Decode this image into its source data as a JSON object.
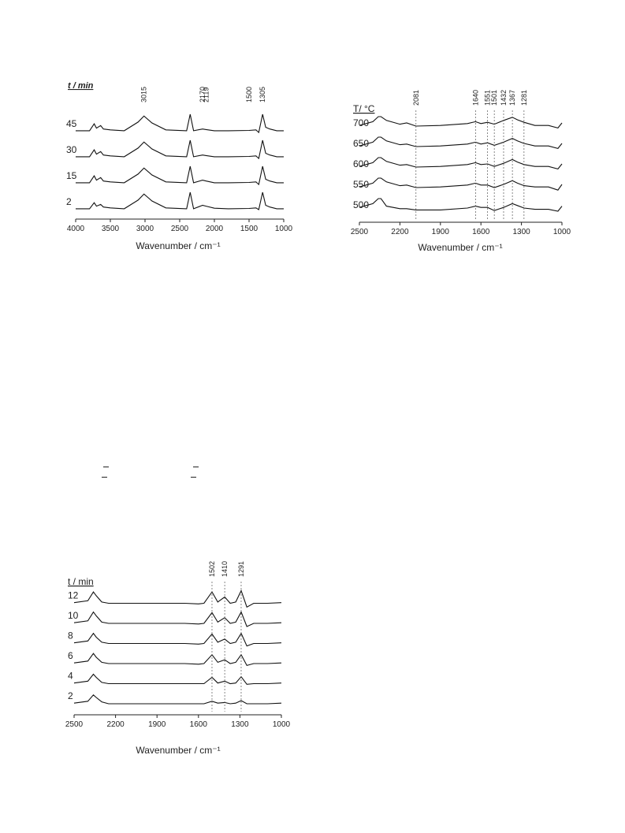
{
  "figures": [
    {
      "id": "top-left",
      "type": "line",
      "xlabel": "Wavenumber / cm⁻¹",
      "xlim": [
        4000,
        1000
      ],
      "xticks": [
        4000,
        3500,
        3000,
        2500,
        2000,
        1500,
        1000
      ],
      "legend_title": "t / min",
      "series_names": [
        "45",
        "30",
        "15",
        "2"
      ],
      "annotations": [
        "3015",
        "2170",
        "2119",
        "1500",
        "1305"
      ],
      "annotation_x": [
        3015,
        2170,
        2119,
        1500,
        1305
      ]
    },
    {
      "id": "top-right",
      "type": "line",
      "xlabel": "Wavenumber / cm⁻¹",
      "xlim": [
        2500,
        1000
      ],
      "xticks": [
        2500,
        2200,
        1900,
        1600,
        1300,
        1000
      ],
      "legend_title": "T/ °C",
      "series_names": [
        "700",
        "650",
        "600",
        "550",
        "500"
      ],
      "annotations": [
        "2081",
        "1640",
        "1551",
        "1501",
        "1432",
        "1367",
        "1281"
      ],
      "annotation_x": [
        2081,
        1640,
        1551,
        1501,
        1432,
        1367,
        1281
      ]
    },
    {
      "id": "bottom-left",
      "type": "line",
      "xlabel": "Wavenumber / cm⁻¹",
      "xlim": [
        2500,
        1000
      ],
      "xticks": [
        2500,
        2200,
        1900,
        1600,
        1300,
        1000
      ],
      "legend_title": "t / min",
      "series_names": [
        "12",
        "10",
        "8",
        "6",
        "4",
        "2"
      ],
      "annotations": [
        "1502",
        "1410",
        "1291"
      ],
      "annotation_x": [
        1502,
        1410,
        1291
      ]
    }
  ],
  "chart_data": [
    {
      "type": "line",
      "xlabel": "Wavenumber / cm⁻¹",
      "xlim": [
        4000,
        1000
      ],
      "ylim": [
        0,
        4
      ],
      "legend_title": "t / min",
      "grid": false,
      "x": [
        4000,
        3800,
        3733,
        3700,
        3640,
        3600,
        3500,
        3300,
        3100,
        3015,
        2900,
        2700,
        2400,
        2349,
        2300,
        2170,
        2119,
        2000,
        1800,
        1500,
        1400,
        1360,
        1305,
        1260,
        1200,
        1100,
        1000
      ],
      "series": [
        {
          "name": "45",
          "values": [
            3.05,
            3.05,
            3.45,
            3.2,
            3.35,
            3.15,
            3.1,
            3.05,
            3.55,
            3.9,
            3.5,
            3.1,
            3.05,
            4.0,
            3.05,
            3.15,
            3.12,
            3.05,
            3.05,
            3.07,
            3.1,
            2.95,
            4.0,
            3.25,
            3.15,
            3.05,
            3.05
          ]
        },
        {
          "name": "30",
          "values": [
            2.05,
            2.05,
            2.45,
            2.2,
            2.35,
            2.15,
            2.1,
            2.05,
            2.55,
            2.9,
            2.5,
            2.1,
            2.05,
            3.0,
            2.05,
            2.15,
            2.12,
            2.05,
            2.05,
            2.07,
            2.1,
            1.95,
            3.0,
            2.25,
            2.15,
            2.05,
            2.05
          ]
        },
        {
          "name": "15",
          "values": [
            1.05,
            1.05,
            1.45,
            1.2,
            1.35,
            1.15,
            1.1,
            1.05,
            1.55,
            1.9,
            1.5,
            1.1,
            1.05,
            2.0,
            1.05,
            1.2,
            1.15,
            1.05,
            1.05,
            1.07,
            1.1,
            0.95,
            2.0,
            1.25,
            1.15,
            1.05,
            1.05
          ]
        },
        {
          "name": "2",
          "values": [
            0.05,
            0.05,
            0.4,
            0.2,
            0.3,
            0.15,
            0.1,
            0.05,
            0.55,
            0.9,
            0.5,
            0.1,
            0.05,
            1.0,
            0.05,
            0.25,
            0.2,
            0.08,
            0.05,
            0.07,
            0.1,
            0.0,
            1.0,
            0.25,
            0.15,
            0.05,
            0.05
          ]
        }
      ]
    },
    {
      "type": "line",
      "xlabel": "Wavenumber / cm⁻¹",
      "xlim": [
        2500,
        1000
      ],
      "ylim": [
        0,
        5
      ],
      "legend_title": "T/ °C",
      "grid": false,
      "x": [
        2500,
        2400,
        2360,
        2340,
        2300,
        2200,
        2150,
        2081,
        1900,
        1700,
        1640,
        1600,
        1551,
        1501,
        1432,
        1367,
        1330,
        1281,
        1200,
        1100,
        1030,
        1000
      ],
      "series": [
        {
          "name": "700",
          "values": [
            4.3,
            4.6,
            5.0,
            5.0,
            4.7,
            4.4,
            4.5,
            4.25,
            4.3,
            4.45,
            4.6,
            4.45,
            4.55,
            4.4,
            4.7,
            4.95,
            4.75,
            4.55,
            4.3,
            4.3,
            4.1,
            4.5
          ]
        },
        {
          "name": "650",
          "values": [
            3.3,
            3.6,
            4.0,
            4.0,
            3.7,
            3.4,
            3.45,
            3.25,
            3.3,
            3.45,
            3.6,
            3.45,
            3.55,
            3.35,
            3.6,
            3.9,
            3.7,
            3.5,
            3.3,
            3.3,
            3.1,
            3.5
          ]
        },
        {
          "name": "600",
          "values": [
            2.3,
            2.6,
            3.0,
            3.0,
            2.7,
            2.4,
            2.45,
            2.25,
            2.3,
            2.45,
            2.6,
            2.45,
            2.5,
            2.3,
            2.55,
            2.85,
            2.65,
            2.45,
            2.3,
            2.3,
            2.1,
            2.5
          ]
        },
        {
          "name": "550",
          "values": [
            1.3,
            1.6,
            2.0,
            2.0,
            1.7,
            1.4,
            1.45,
            1.25,
            1.3,
            1.45,
            1.6,
            1.45,
            1.45,
            1.25,
            1.5,
            1.8,
            1.6,
            1.4,
            1.3,
            1.3,
            1.05,
            1.5
          ]
        },
        {
          "name": "500",
          "values": [
            0.3,
            0.6,
            1.0,
            1.0,
            0.4,
            0.2,
            0.2,
            0.1,
            0.1,
            0.25,
            0.4,
            0.3,
            0.3,
            0.05,
            0.3,
            0.6,
            0.45,
            0.25,
            0.15,
            0.15,
            0.0,
            0.4
          ]
        }
      ]
    },
    {
      "type": "line",
      "xlabel": "Wavenumber / cm⁻¹",
      "xlim": [
        2500,
        1000
      ],
      "ylim": [
        0,
        6
      ],
      "legend_title": "t / min",
      "grid": false,
      "x": [
        2500,
        2400,
        2360,
        2340,
        2300,
        2250,
        2000,
        1700,
        1600,
        1560,
        1502,
        1460,
        1410,
        1370,
        1330,
        1291,
        1250,
        1200,
        1100,
        1000
      ],
      "series": [
        {
          "name": "12",
          "values": [
            5.05,
            5.2,
            5.9,
            5.6,
            5.1,
            5.0,
            5.0,
            5.0,
            4.95,
            5.0,
            5.9,
            5.1,
            5.5,
            5.0,
            5.1,
            6.0,
            4.7,
            5.0,
            5.0,
            5.05
          ]
        },
        {
          "name": "10",
          "values": [
            4.05,
            4.2,
            4.9,
            4.6,
            4.1,
            4.0,
            4.0,
            4.0,
            3.95,
            4.0,
            4.85,
            4.1,
            4.45,
            4.0,
            4.1,
            4.9,
            3.75,
            4.0,
            4.0,
            4.05
          ]
        },
        {
          "name": "8",
          "values": [
            3.05,
            3.2,
            3.8,
            3.5,
            3.1,
            3.0,
            3.0,
            3.0,
            2.95,
            3.0,
            3.75,
            3.1,
            3.35,
            3.0,
            3.1,
            3.8,
            2.8,
            3.0,
            3.0,
            3.05
          ]
        },
        {
          "name": "6",
          "values": [
            2.05,
            2.2,
            2.8,
            2.5,
            2.1,
            2.0,
            2.0,
            2.0,
            1.95,
            2.0,
            2.7,
            2.1,
            2.3,
            2.0,
            2.1,
            2.7,
            1.85,
            2.0,
            2.0,
            2.05
          ]
        },
        {
          "name": "4",
          "values": [
            1.05,
            1.2,
            1.75,
            1.5,
            1.1,
            1.0,
            1.0,
            1.0,
            1.0,
            1.0,
            1.5,
            1.05,
            1.2,
            1.0,
            1.05,
            1.55,
            0.95,
            1.0,
            1.0,
            1.05
          ]
        },
        {
          "name": "2",
          "values": [
            0.05,
            0.2,
            0.7,
            0.5,
            0.15,
            0.0,
            0.0,
            0.0,
            0.0,
            0.0,
            0.2,
            0.05,
            0.1,
            0.0,
            0.05,
            0.25,
            0.0,
            0.0,
            0.0,
            0.05
          ]
        }
      ]
    }
  ]
}
